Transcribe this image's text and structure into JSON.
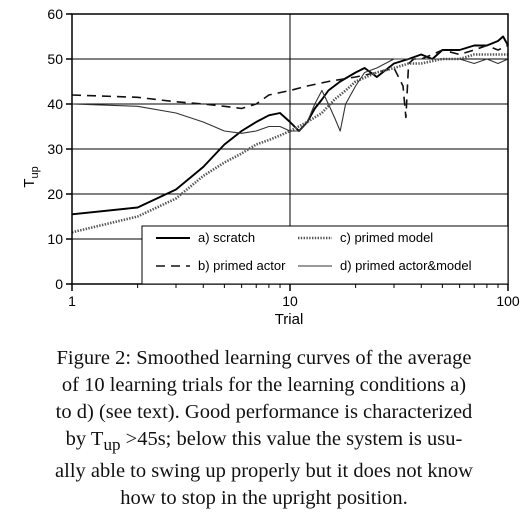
{
  "chart_data": {
    "type": "line",
    "title": "",
    "xlabel": "Trial",
    "ylabel": "T",
    "ylabel_sub": "up",
    "xscale": "log",
    "xlim": [
      1,
      100
    ],
    "ylim": [
      0,
      60
    ],
    "xticks": [
      1,
      10,
      100
    ],
    "xtick_labels": [
      "1",
      "10",
      "100"
    ],
    "yticks": [
      0,
      10,
      20,
      30,
      40,
      50,
      60
    ],
    "ytick_labels": [
      "0",
      "10",
      "20",
      "30",
      "40",
      "50",
      "60"
    ],
    "grid": true,
    "legend_position": "bottom-right",
    "series": [
      {
        "name": "a) scratch",
        "style": "solid",
        "x": [
          1,
          2,
          3,
          4,
          5,
          6,
          7,
          8,
          9,
          10,
          11,
          12,
          13,
          14,
          15,
          17,
          20,
          22,
          25,
          30,
          35,
          40,
          45,
          50,
          60,
          70,
          80,
          90,
          95,
          100
        ],
        "y": [
          15.5,
          17,
          21,
          26,
          31,
          34,
          36,
          37.5,
          38,
          36,
          34,
          36,
          39,
          41,
          43,
          45,
          47,
          48,
          46,
          49,
          50,
          51,
          50,
          52,
          52,
          53,
          53,
          54,
          55,
          53
        ]
      },
      {
        "name": "b) primed actor",
        "style": "dashed",
        "x": [
          1,
          2,
          3,
          4,
          5,
          6,
          7,
          8,
          10,
          12,
          15,
          20,
          25,
          30,
          33,
          34,
          35,
          37,
          40,
          45,
          50,
          60,
          70,
          80,
          90,
          100
        ],
        "y": [
          42,
          41.5,
          40.5,
          40,
          39.5,
          39,
          40,
          42,
          43,
          44,
          45,
          46,
          47,
          48,
          44,
          37,
          49,
          50,
          50,
          51,
          52,
          51,
          52,
          53,
          52,
          53
        ]
      },
      {
        "name": "c) primed model",
        "style": "dotted",
        "x": [
          1,
          2,
          3,
          4,
          5,
          6,
          7,
          8,
          9,
          10,
          12,
          14,
          16,
          18,
          20,
          25,
          30,
          35,
          40,
          50,
          60,
          70,
          80,
          90,
          100
        ],
        "y": [
          11.5,
          15,
          19,
          24,
          27,
          29,
          31,
          32,
          33,
          34,
          36,
          38,
          41,
          43,
          45,
          47,
          48,
          49,
          49,
          50,
          50,
          51,
          51,
          51,
          51
        ]
      },
      {
        "name": "d) primed actor&model",
        "style": "solid-thin",
        "x": [
          1,
          2,
          3,
          4,
          5,
          6,
          7,
          8,
          9,
          10,
          11,
          12,
          13,
          14,
          15,
          16,
          17,
          18,
          20,
          22,
          25,
          30,
          40,
          50,
          60,
          70,
          80,
          90,
          100
        ],
        "y": [
          40,
          39.5,
          38,
          36,
          34,
          33.5,
          34,
          35,
          35,
          34,
          34,
          36,
          40,
          43,
          40,
          37,
          34,
          40,
          44,
          47,
          48,
          50,
          50,
          50,
          50,
          49,
          50,
          49,
          50
        ]
      }
    ]
  },
  "caption": {
    "lines": [
      "Figure 2: Smoothed learning curves of the average",
      "of 10 learning trials for the learning conditions a)",
      "to d) (see text). Good performance is characterized",
      "by T<sub>up</sub> >45s; below this value the system is usu-",
      "ally able to swing up properly but it does not know",
      "how to stop in the upright position."
    ],
    "line1": "Figure 2: Smoothed learning curves of the average",
    "line2": "of 10 learning trials for the learning conditions a)",
    "line3": "to d) (see text). Good performance is characterized",
    "line4_pre": "by T",
    "line4_sub": "up",
    "line4_post": " >45s; below this value the system is usu-",
    "line5": "ally able to swing up properly but it does not know",
    "line6": "how to stop in the upright position."
  }
}
